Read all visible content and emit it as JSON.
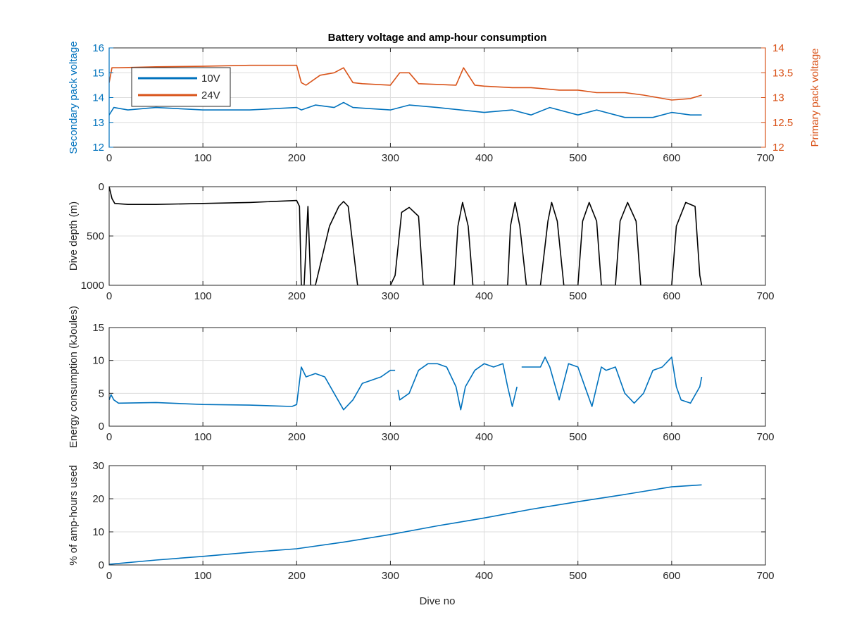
{
  "figure": {
    "title": "Battery voltage and amp-hour consumption"
  },
  "colors": {
    "blue": "#0072BD",
    "orange": "#D95319",
    "black": "#000000",
    "grid": "#dddddd",
    "axis": "#262626"
  },
  "chart_data": [
    {
      "type": "line",
      "title": "Battery voltage and amp-hour consumption",
      "xlabel": "",
      "ylabel": "Secondary pack voltage",
      "ylabel_right": "Primary pack voltage",
      "xlim": [
        0,
        700
      ],
      "ylim": [
        12,
        16
      ],
      "ylim_right": [
        12,
        14
      ],
      "xticks": [
        0,
        100,
        200,
        300,
        400,
        500,
        600,
        700
      ],
      "yticks": [
        12,
        13,
        14,
        15,
        16
      ],
      "yticks_right": [
        "12",
        "12.5",
        "13",
        "13.5",
        "14"
      ],
      "grid": true,
      "legend": {
        "placement": "top-left",
        "entries": [
          "10V",
          "24V"
        ]
      },
      "series": [
        {
          "name": "10V",
          "axis": "left",
          "x": [
            0,
            5,
            20,
            50,
            100,
            150,
            200,
            205,
            220,
            240,
            250,
            260,
            300,
            320,
            350,
            400,
            430,
            450,
            470,
            500,
            520,
            550,
            580,
            600,
            620,
            632
          ],
          "y": [
            13.3,
            13.6,
            13.5,
            13.6,
            13.5,
            13.5,
            13.6,
            13.5,
            13.7,
            13.6,
            13.8,
            13.6,
            13.5,
            13.7,
            13.6,
            13.4,
            13.5,
            13.3,
            13.6,
            13.3,
            13.5,
            13.2,
            13.2,
            13.4,
            13.3,
            13.3
          ]
        },
        {
          "name": "24V",
          "axis": "right",
          "x": [
            0,
            3,
            10,
            50,
            100,
            150,
            200,
            205,
            210,
            225,
            240,
            250,
            260,
            270,
            300,
            310,
            320,
            330,
            370,
            378,
            390,
            400,
            430,
            450,
            480,
            500,
            520,
            550,
            570,
            600,
            620,
            632
          ],
          "y": [
            13.3,
            13.6,
            13.6,
            13.62,
            13.63,
            13.65,
            13.65,
            13.3,
            13.25,
            13.45,
            13.5,
            13.6,
            13.3,
            13.28,
            13.25,
            13.5,
            13.5,
            13.28,
            13.25,
            13.6,
            13.25,
            13.23,
            13.2,
            13.2,
            13.15,
            13.15,
            13.1,
            13.1,
            13.05,
            12.95,
            12.98,
            13.05
          ]
        }
      ]
    },
    {
      "type": "line",
      "xlabel": "",
      "ylabel": "Dive depth (m)",
      "xlim": [
        0,
        700
      ],
      "ylim": [
        0,
        1000
      ],
      "y_reversed": true,
      "xticks": [
        0,
        100,
        200,
        300,
        400,
        500,
        600,
        700
      ],
      "yticks": [
        0,
        500,
        1000
      ],
      "grid": true,
      "series": [
        {
          "name": "",
          "x": [
            0,
            3,
            6,
            20,
            50,
            100,
            150,
            200,
            203,
            205,
            208,
            212,
            215,
            217,
            220,
            235,
            245,
            250,
            255,
            265,
            300,
            305,
            312,
            320,
            330,
            335,
            368,
            372,
            377,
            383,
            388,
            425,
            428,
            433,
            438,
            445,
            460,
            468,
            472,
            478,
            485,
            500,
            505,
            512,
            520,
            525,
            540,
            545,
            553,
            562,
            567,
            600,
            605,
            615,
            625,
            630,
            632
          ],
          "y": [
            0,
            120,
            170,
            180,
            180,
            170,
            160,
            140,
            200,
            1000,
            1000,
            200,
            1000,
            1000,
            1000,
            400,
            200,
            150,
            200,
            1000,
            1000,
            900,
            260,
            210,
            300,
            1000,
            1000,
            400,
            160,
            400,
            1000,
            1000,
            400,
            160,
            400,
            1000,
            1000,
            350,
            160,
            350,
            1000,
            1000,
            350,
            160,
            350,
            1000,
            1000,
            350,
            160,
            350,
            1000,
            1000,
            400,
            160,
            200,
            900,
            1000
          ]
        }
      ]
    },
    {
      "type": "line",
      "xlabel": "",
      "ylabel": "Energy consumption (kJoules)",
      "xlim": [
        0,
        700
      ],
      "ylim": [
        0,
        15
      ],
      "xticks": [
        0,
        100,
        200,
        300,
        400,
        500,
        600,
        700
      ],
      "yticks": [
        0,
        5,
        10,
        15
      ],
      "grid": true,
      "series": [
        {
          "name": "",
          "x": [
            0,
            2,
            5,
            10,
            50,
            100,
            150,
            195,
            200,
            205,
            210,
            220,
            230,
            240,
            250,
            260,
            270,
            290,
            300,
            305
          ],
          "y": [
            4.0,
            4.8,
            4.0,
            3.5,
            3.6,
            3.3,
            3.2,
            3.0,
            3.3,
            9.0,
            7.5,
            8.0,
            7.5,
            5.0,
            2.5,
            4.0,
            6.5,
            7.5,
            8.5,
            8.5
          ]
        },
        {
          "name": "",
          "x": [
            308,
            310,
            320,
            330,
            340,
            350,
            360,
            370,
            375,
            380,
            390,
            400,
            410,
            420,
            425,
            430,
            435
          ],
          "y": [
            5.5,
            4.0,
            5.0,
            8.5,
            9.5,
            9.5,
            9.0,
            6.0,
            2.5,
            6.0,
            8.5,
            9.5,
            9.0,
            9.5,
            6.0,
            3.0,
            6.0
          ]
        },
        {
          "name": "",
          "x": [
            440,
            445,
            460,
            465,
            470,
            480,
            490,
            500,
            510,
            515,
            520,
            525,
            530,
            540,
            550,
            560,
            570,
            580,
            590,
            600,
            605,
            610,
            620,
            630,
            632
          ],
          "y": [
            9.0,
            9.0,
            9.0,
            10.5,
            9.0,
            4.0,
            9.5,
            9.0,
            5.0,
            3.0,
            6.0,
            9.0,
            8.5,
            9.0,
            5.0,
            3.5,
            5.0,
            8.5,
            9.0,
            10.5,
            6.0,
            4.0,
            3.5,
            6.0,
            7.5
          ]
        }
      ]
    },
    {
      "type": "line",
      "xlabel": "Dive no",
      "ylabel": "% of amp-hours used",
      "xlim": [
        0,
        700
      ],
      "ylim": [
        0,
        30
      ],
      "xticks": [
        0,
        100,
        200,
        300,
        400,
        500,
        600,
        700
      ],
      "yticks": [
        0,
        10,
        20,
        30
      ],
      "grid": true,
      "series": [
        {
          "name": "",
          "x": [
            0,
            50,
            100,
            150,
            200,
            250,
            300,
            350,
            400,
            450,
            500,
            550,
            600,
            632
          ],
          "y": [
            0.2,
            1.5,
            2.6,
            3.8,
            4.9,
            6.9,
            9.2,
            11.8,
            14.2,
            16.8,
            19.1,
            21.3,
            23.6,
            24.2
          ]
        }
      ]
    }
  ]
}
